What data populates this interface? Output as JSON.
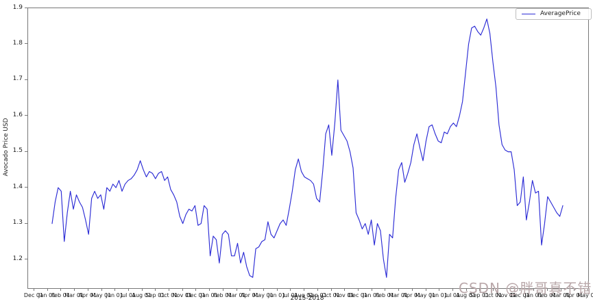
{
  "chart_data": {
    "type": "line",
    "title": "",
    "xlabel": "2015-2018",
    "ylabel": "Avocado Price USD",
    "grid": false,
    "legend": {
      "position": "upper right",
      "entries": [
        "AveragePrice"
      ]
    },
    "line_color": "#2b2bd5",
    "ylim": [
      1.12,
      1.9
    ],
    "y_tick_labels": [
      "1.2",
      "1.3",
      "1.4",
      "1.5",
      "1.6",
      "1.7",
      "1.8",
      "1.9"
    ],
    "x_tick_labels": [
      "Dec 01",
      "Jan 01",
      "Feb 01",
      "Mar 01",
      "Apr 01",
      "May 01",
      "Jun 01",
      "Jul 01",
      "Aug 01",
      "Sep 01",
      "Oct 01",
      "Nov 01",
      "Dec 01",
      "Jan 01",
      "Feb 01",
      "Mar 01",
      "Apr 01",
      "May 01",
      "Jun 01",
      "Jul 01",
      "Aug 01",
      "Sep 01",
      "Oct 01",
      "Nov 01",
      "Dec 01",
      "Jan 01",
      "Feb 01",
      "Mar 01",
      "Apr 01",
      "May 01",
      "Jun 01",
      "Jul 01",
      "Aug 01",
      "Sep 01",
      "Oct 01",
      "Nov 01",
      "Dec 01",
      "Jan 01",
      "Feb 01",
      "Mar 01",
      "Apr 01",
      "May 01"
    ],
    "series": [
      {
        "name": "AveragePrice",
        "frequency": "weekly",
        "values": [
          1.3,
          1.36,
          1.4,
          1.39,
          1.25,
          1.33,
          1.39,
          1.34,
          1.38,
          1.36,
          1.345,
          1.31,
          1.27,
          1.37,
          1.39,
          1.37,
          1.38,
          1.34,
          1.4,
          1.39,
          1.41,
          1.4,
          1.42,
          1.39,
          1.41,
          1.42,
          1.425,
          1.435,
          1.45,
          1.475,
          1.45,
          1.43,
          1.445,
          1.44,
          1.425,
          1.44,
          1.445,
          1.42,
          1.43,
          1.395,
          1.38,
          1.36,
          1.32,
          1.3,
          1.325,
          1.34,
          1.335,
          1.35,
          1.295,
          1.3,
          1.35,
          1.34,
          1.21,
          1.265,
          1.255,
          1.19,
          1.27,
          1.28,
          1.27,
          1.21,
          1.21,
          1.245,
          1.19,
          1.22,
          1.18,
          1.155,
          1.15,
          1.23,
          1.235,
          1.25,
          1.255,
          1.305,
          1.27,
          1.26,
          1.28,
          1.3,
          1.31,
          1.295,
          1.34,
          1.39,
          1.45,
          1.48,
          1.445,
          1.43,
          1.425,
          1.42,
          1.41,
          1.37,
          1.36,
          1.445,
          1.55,
          1.575,
          1.49,
          1.58,
          1.7,
          1.56,
          1.545,
          1.53,
          1.5,
          1.455,
          1.33,
          1.31,
          1.285,
          1.3,
          1.27,
          1.31,
          1.24,
          1.3,
          1.28,
          1.2,
          1.15,
          1.27,
          1.26,
          1.37,
          1.45,
          1.47,
          1.415,
          1.44,
          1.47,
          1.52,
          1.55,
          1.51,
          1.475,
          1.53,
          1.57,
          1.575,
          1.55,
          1.53,
          1.525,
          1.555,
          1.55,
          1.57,
          1.58,
          1.57,
          1.6,
          1.64,
          1.72,
          1.8,
          1.845,
          1.85,
          1.835,
          1.825,
          1.845,
          1.87,
          1.83,
          1.75,
          1.68,
          1.575,
          1.52,
          1.505,
          1.5,
          1.5,
          1.45,
          1.35,
          1.36,
          1.43,
          1.31,
          1.36,
          1.42,
          1.385,
          1.39,
          1.24,
          1.3,
          1.375,
          1.36,
          1.345,
          1.33,
          1.32,
          1.35
        ]
      }
    ]
  },
  "legend": {
    "label": "AveragePrice"
  },
  "axis": {
    "xlabel": "2015-2018",
    "ylabel": "Avocado Price USD"
  },
  "watermark": {
    "text": "CSDN @胖哥真不错",
    "color": "#baa8aa"
  }
}
